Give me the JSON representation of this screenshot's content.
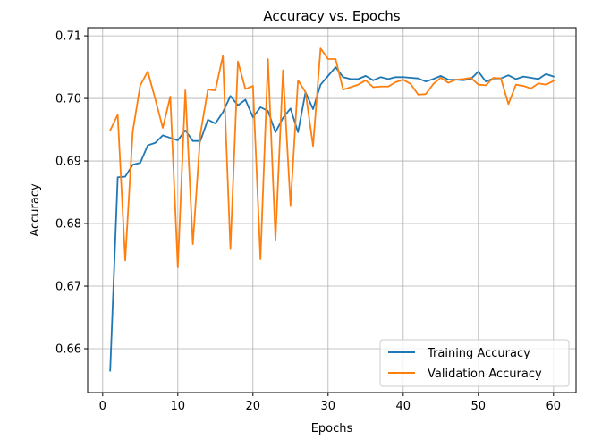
{
  "chart_data": {
    "type": "line",
    "title": "Accuracy vs. Epochs",
    "xlabel": "Epochs",
    "ylabel": "Accuracy",
    "xlim": [
      -2,
      63
    ],
    "ylim": [
      0.653,
      0.7113
    ],
    "xticks": [
      0,
      10,
      20,
      30,
      40,
      50,
      60
    ],
    "yticks": [
      0.66,
      0.67,
      0.68,
      0.69,
      0.7,
      0.71
    ],
    "ytick_labels": [
      "0.66",
      "0.67",
      "0.68",
      "0.69",
      "0.70",
      "0.71"
    ],
    "grid": true,
    "legend_position": "lower-right",
    "x": [
      1,
      2,
      3,
      4,
      5,
      6,
      7,
      8,
      9,
      10,
      11,
      12,
      13,
      14,
      15,
      16,
      17,
      18,
      19,
      20,
      21,
      22,
      23,
      24,
      25,
      26,
      27,
      28,
      29,
      30,
      31,
      32,
      33,
      34,
      35,
      36,
      37,
      38,
      39,
      40,
      41,
      42,
      43,
      44,
      45,
      46,
      47,
      48,
      49,
      50,
      51,
      52,
      53,
      54,
      55,
      56,
      57,
      58,
      59,
      60
    ],
    "series": [
      {
        "name": "Training Accuracy",
        "color": "#1f77b4",
        "values": [
          0.6565,
          0.6874,
          0.6875,
          0.6894,
          0.6897,
          0.6925,
          0.6929,
          0.6941,
          0.6937,
          0.6933,
          0.6949,
          0.6932,
          0.6932,
          0.6966,
          0.696,
          0.6978,
          0.7004,
          0.6989,
          0.6998,
          0.697,
          0.6986,
          0.698,
          0.6946,
          0.6969,
          0.6984,
          0.6946,
          0.701,
          0.6983,
          0.7022,
          0.7036,
          0.705,
          0.7034,
          0.7031,
          0.7031,
          0.7036,
          0.7029,
          0.7034,
          0.7031,
          0.7034,
          0.7034,
          0.7033,
          0.7032,
          0.7027,
          0.7031,
          0.7036,
          0.703,
          0.703,
          0.7029,
          0.7031,
          0.7043,
          0.7027,
          0.7032,
          0.7032,
          0.7037,
          0.7031,
          0.7035,
          0.7033,
          0.7031,
          0.7039,
          0.7035
        ]
      },
      {
        "name": "Validation Accuracy",
        "color": "#ff7f0e",
        "values": [
          0.6949,
          0.6974,
          0.6741,
          0.6947,
          0.7021,
          0.7043,
          0.6999,
          0.6953,
          0.7003,
          0.673,
          0.7013,
          0.6767,
          0.6943,
          0.7014,
          0.7013,
          0.7068,
          0.6759,
          0.7059,
          0.7015,
          0.702,
          0.6743,
          0.7063,
          0.6774,
          0.7045,
          0.6829,
          0.7029,
          0.701,
          0.6924,
          0.708,
          0.7063,
          0.7063,
          0.7014,
          0.7018,
          0.7022,
          0.7029,
          0.7018,
          0.7019,
          0.7019,
          0.7026,
          0.703,
          0.7023,
          0.7006,
          0.7007,
          0.7023,
          0.7033,
          0.7025,
          0.703,
          0.7031,
          0.7033,
          0.7022,
          0.7021,
          0.7033,
          0.7032,
          0.6991,
          0.7022,
          0.702,
          0.7016,
          0.7024,
          0.7022,
          0.7028
        ]
      }
    ]
  }
}
